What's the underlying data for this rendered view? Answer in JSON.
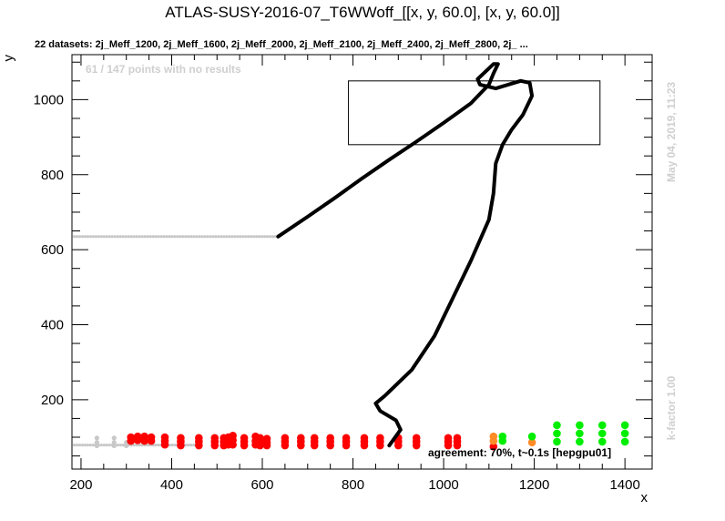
{
  "chart_data": {
    "type": "scatter",
    "title": "ATLAS-SUSY-2016-07_T6WWoff_[[x, y, 60.0], [x, y, 60.0]]",
    "subtitle": "22 datasets: 2j_Meff_1200, 2j_Meff_1600, 2j_Meff_2000, 2j_Meff_2100, 2j_Meff_2400, 2j_Meff_2800, 2j_ ...",
    "xlabel": "x",
    "ylabel": "y",
    "xlim": [
      180,
      1460
    ],
    "ylim": [
      15,
      1120
    ],
    "xticks": [
      200,
      400,
      600,
      800,
      1000,
      1200,
      1400
    ],
    "yticks": [
      200,
      400,
      600,
      800,
      1000
    ],
    "no_results_note": "61 / 147 points with no results",
    "timestamp": "May 04, 2019, 11:23",
    "kfactor": "k-factor 1.00",
    "agreement": "agreement: 70%, t~0.1s [hepgpu01]",
    "colors": {
      "excluded": "#ff0000",
      "allowed": "#00ee00",
      "border": "#ff8c28",
      "no_result": "#c8c8c8",
      "contour": "#000000"
    },
    "points": {
      "red": [
        [
          310,
          100
        ],
        [
          310,
          90
        ],
        [
          325,
          102
        ],
        [
          325,
          92
        ],
        [
          340,
          102
        ],
        [
          340,
          90
        ],
        [
          355,
          100
        ],
        [
          355,
          90
        ],
        [
          385,
          100
        ],
        [
          385,
          90
        ],
        [
          385,
          80
        ],
        [
          420,
          98
        ],
        [
          420,
          88
        ],
        [
          420,
          78
        ],
        [
          460,
          98
        ],
        [
          460,
          88
        ],
        [
          460,
          78
        ],
        [
          495,
          98
        ],
        [
          495,
          88
        ],
        [
          495,
          78
        ],
        [
          515,
          98
        ],
        [
          515,
          88
        ],
        [
          515,
          78
        ],
        [
          525,
          100
        ],
        [
          525,
          90
        ],
        [
          525,
          80
        ],
        [
          535,
          104
        ],
        [
          535,
          92
        ],
        [
          535,
          80
        ],
        [
          560,
          98
        ],
        [
          560,
          88
        ],
        [
          560,
          78
        ],
        [
          585,
          102
        ],
        [
          585,
          90
        ],
        [
          585,
          80
        ],
        [
          595,
          98
        ],
        [
          595,
          88
        ],
        [
          595,
          78
        ],
        [
          610,
          96
        ],
        [
          610,
          86
        ],
        [
          610,
          78
        ],
        [
          650,
          98
        ],
        [
          650,
          88
        ],
        [
          650,
          78
        ],
        [
          685,
          98
        ],
        [
          685,
          88
        ],
        [
          685,
          78
        ],
        [
          715,
          98
        ],
        [
          715,
          88
        ],
        [
          715,
          78
        ],
        [
          750,
          98
        ],
        [
          750,
          88
        ],
        [
          750,
          78
        ],
        [
          785,
          98
        ],
        [
          785,
          88
        ],
        [
          785,
          78
        ],
        [
          825,
          98
        ],
        [
          825,
          88
        ],
        [
          825,
          78
        ],
        [
          860,
          98
        ],
        [
          860,
          88
        ],
        [
          860,
          78
        ],
        [
          900,
          98
        ],
        [
          900,
          88
        ],
        [
          900,
          78
        ],
        [
          940,
          98
        ],
        [
          940,
          88
        ],
        [
          940,
          78
        ],
        [
          1010,
          98
        ],
        [
          1010,
          88
        ],
        [
          1010,
          78
        ],
        [
          1030,
          98
        ],
        [
          1030,
          88
        ],
        [
          1030,
          78
        ],
        [
          1110,
          75
        ]
      ],
      "orange": [
        [
          1110,
          102
        ],
        [
          1110,
          90
        ],
        [
          1195,
          86
        ]
      ],
      "green": [
        [
          1130,
          102
        ],
        [
          1130,
          90
        ],
        [
          1195,
          102
        ],
        [
          1250,
          132
        ],
        [
          1250,
          110
        ],
        [
          1250,
          88
        ],
        [
          1300,
          132
        ],
        [
          1300,
          110
        ],
        [
          1300,
          88
        ],
        [
          1350,
          132
        ],
        [
          1350,
          110
        ],
        [
          1350,
          88
        ],
        [
          1400,
          132
        ],
        [
          1400,
          110
        ],
        [
          1400,
          88
        ]
      ],
      "gray": [
        [
          235,
          98
        ],
        [
          235,
          86
        ],
        [
          235,
          77
        ],
        [
          273,
          98
        ],
        [
          273,
          86
        ],
        [
          273,
          77
        ],
        [
          300,
          86
        ],
        [
          300,
          77
        ]
      ],
      "gray_rows": [
        {
          "y": 635,
          "x_from": 185,
          "x_to": 630
        },
        {
          "y": 79,
          "x_from": 185,
          "x_to": 460
        }
      ]
    },
    "contour": [
      [
        635,
        635
      ],
      [
        700,
        688
      ],
      [
        760,
        738
      ],
      [
        820,
        790
      ],
      [
        880,
        840
      ],
      [
        940,
        888
      ],
      [
        1000,
        938
      ],
      [
        1060,
        990
      ],
      [
        1100,
        1040
      ],
      [
        1110,
        1070
      ],
      [
        1120,
        1095
      ],
      [
        1110,
        1095
      ],
      [
        1075,
        1055
      ],
      [
        1080,
        1040
      ],
      [
        1115,
        1030
      ],
      [
        1170,
        1050
      ],
      [
        1190,
        1045
      ],
      [
        1195,
        1010
      ],
      [
        1175,
        960
      ],
      [
        1150,
        920
      ],
      [
        1130,
        880
      ],
      [
        1115,
        830
      ],
      [
        1110,
        750
      ],
      [
        1100,
        680
      ],
      [
        1060,
        570
      ],
      [
        1020,
        470
      ],
      [
        980,
        370
      ],
      [
        930,
        280
      ],
      [
        870,
        210
      ],
      [
        850,
        190
      ],
      [
        860,
        170
      ],
      [
        895,
        145
      ],
      [
        905,
        120
      ],
      [
        880,
        78
      ]
    ],
    "box": {
      "x0": 790,
      "x1": 1345,
      "y0": 880,
      "y1": 1050
    }
  }
}
